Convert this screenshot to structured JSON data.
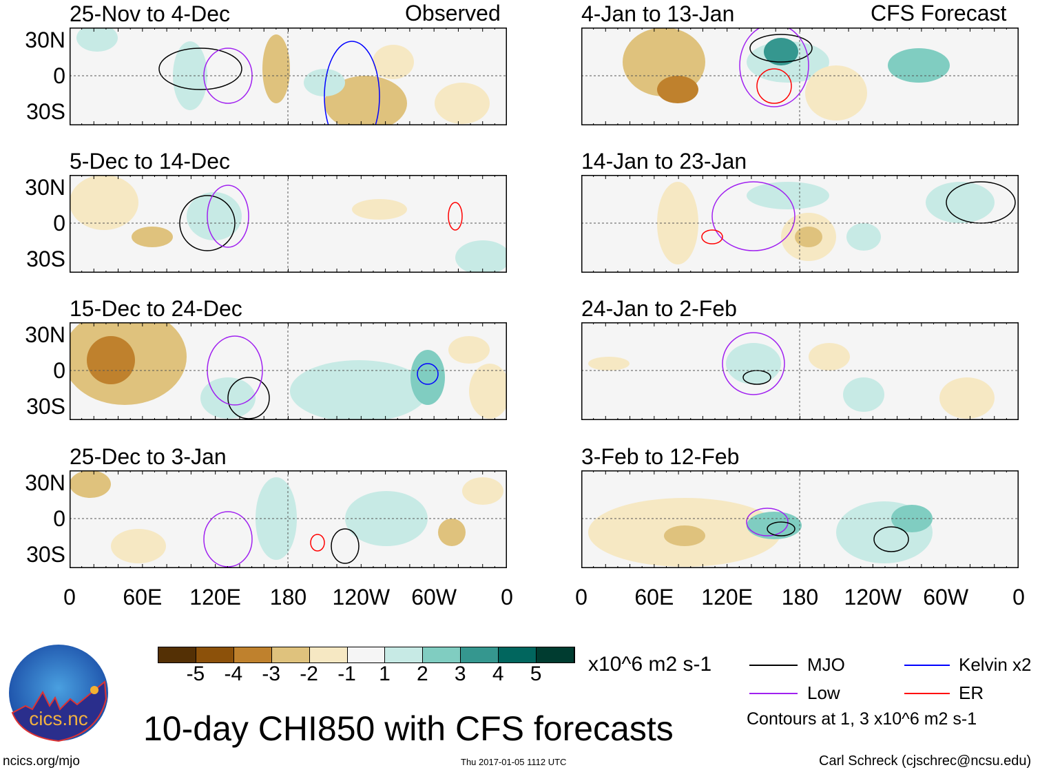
{
  "figure": {
    "title": "10-day CHI850 with CFS forecasts",
    "left_header": "Observed",
    "right_header": "CFS Forecast",
    "y_ticks": [
      "30N",
      "0",
      "30S"
    ],
    "x_ticks": [
      "0",
      "60E",
      "120E",
      "180",
      "120W",
      "60W",
      "0"
    ],
    "panels_left": [
      {
        "label": "25-Nov to 4-Dec"
      },
      {
        "label": "5-Dec to 14-Dec"
      },
      {
        "label": "15-Dec to 24-Dec"
      },
      {
        "label": "25-Dec to 3-Jan"
      }
    ],
    "panels_right": [
      {
        "label": "4-Jan to 13-Jan"
      },
      {
        "label": "14-Jan to 23-Jan"
      },
      {
        "label": "24-Jan to 2-Feb"
      },
      {
        "label": "3-Feb to 12-Feb"
      }
    ]
  },
  "colorbar": {
    "labels": [
      "-5",
      "-4",
      "-3",
      "-2",
      "-1",
      "1",
      "2",
      "3",
      "4",
      "5"
    ],
    "colors": [
      "#543005",
      "#8c510a",
      "#bf812d",
      "#dfc27d",
      "#f6e8c3",
      "#f5f5f5",
      "#c7eae5",
      "#80cdc1",
      "#35978f",
      "#01665e",
      "#003c30"
    ],
    "units": "x10^6 m2 s-1"
  },
  "legend": {
    "items": [
      {
        "label": "MJO",
        "color": "#000000"
      },
      {
        "label": "Kelvin x2",
        "color": "#0000ff"
      },
      {
        "label": "Low",
        "color": "#a020f0"
      },
      {
        "label": "ER",
        "color": "#ff0000"
      }
    ],
    "note": "Contours at 1, 3 x10^6 m2 s-1"
  },
  "logo": {
    "text": "cics.nc",
    "ring_text": "Cooperative Institute for Climate and Satellites"
  },
  "footer": {
    "url": "ncics.org/mjo",
    "timestamp": "Thu 2017-01-05 1112 UTC",
    "credit": "Carl Schreck (cjschrec@ncsu.edu)"
  }
}
